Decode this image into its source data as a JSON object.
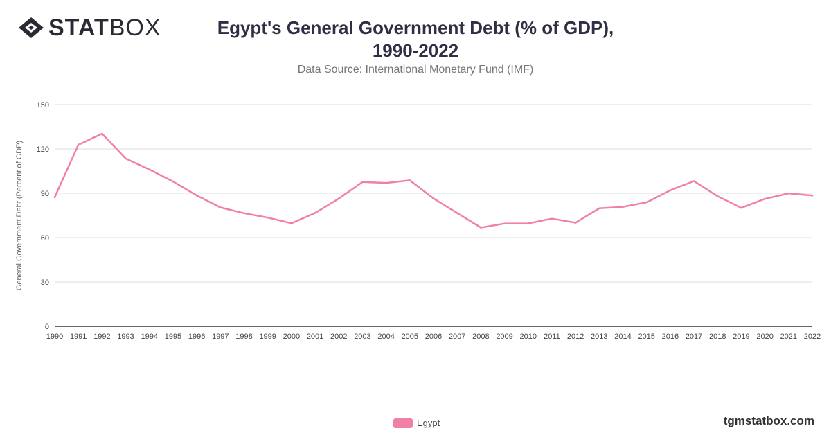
{
  "brand": {
    "logo_bold": "STAT",
    "logo_light": "BOX",
    "watermark": "tgmstatbox.com"
  },
  "header": {
    "title_line1": "Egypt's General Government Debt (% of GDP),",
    "title_line2": "1990-2022",
    "subtitle": "Data Source: International Monetary Fund (IMF)"
  },
  "colors": {
    "series": "#f080a8",
    "grid": "#dddddd",
    "axis": "#333333",
    "tick_text": "#444444"
  },
  "chart_data": {
    "type": "line",
    "title": "Egypt's General Government Debt (% of GDP), 1990-2022",
    "subtitle": "Data Source: International Monetary Fund (IMF)",
    "xlabel": "",
    "ylabel": "General Government Debt (Percent of GDP)",
    "ylim": [
      0,
      150
    ],
    "yticks": [
      0,
      30,
      60,
      90,
      120,
      150
    ],
    "grid": true,
    "legend_position": "bottom-center",
    "x": [
      "1990",
      "1991",
      "1992",
      "1993",
      "1994",
      "1995",
      "1996",
      "1997",
      "1998",
      "1999",
      "2000",
      "2001",
      "2002",
      "2003",
      "2004",
      "2005",
      "2006",
      "2007",
      "2008",
      "2009",
      "2010",
      "2011",
      "2012",
      "2013",
      "2014",
      "2015",
      "2016",
      "2017",
      "2018",
      "2019",
      "2020",
      "2021",
      "2022"
    ],
    "series": [
      {
        "name": "Egypt",
        "values": [
          87.3,
          122.8,
          130.3,
          113.5,
          106.1,
          97.9,
          88.5,
          80.4,
          76.5,
          73.5,
          69.7,
          76.7,
          86.4,
          97.6,
          97.0,
          98.7,
          86.5,
          76.6,
          66.8,
          69.5,
          69.6,
          72.8,
          70.1,
          79.8,
          80.8,
          83.8,
          92.0,
          98.2,
          88.0,
          80.1,
          86.2,
          89.9,
          88.5
        ],
        "color": "#f080a8"
      }
    ]
  }
}
